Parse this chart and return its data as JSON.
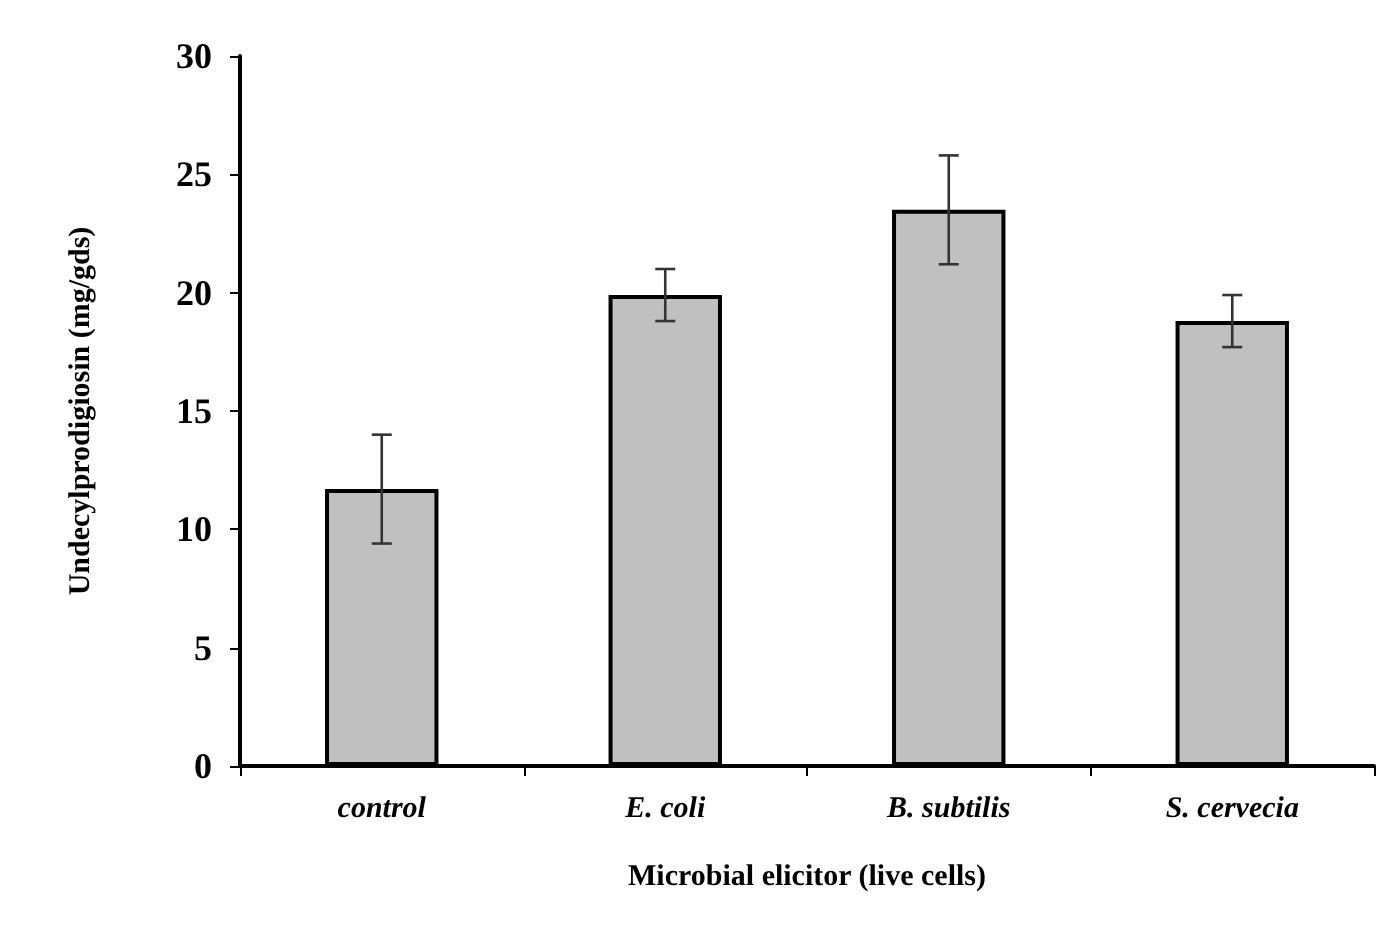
{
  "chart_data": {
    "type": "bar",
    "xlabel": "Microbial elicitor (live cells)",
    "ylabel": "Undecylprodigiosin (mg/gds)",
    "categories": [
      "control",
      "E. coli",
      "B. subtilis",
      "S. cervecia"
    ],
    "values": [
      11.7,
      19.9,
      23.5,
      18.8
    ],
    "errors": [
      2.3,
      1.1,
      2.3,
      1.1
    ],
    "color": "#c0c0c0",
    "ylim": [
      0,
      30
    ],
    "yticks": [
      0,
      5,
      10,
      15,
      20,
      25,
      30
    ]
  }
}
